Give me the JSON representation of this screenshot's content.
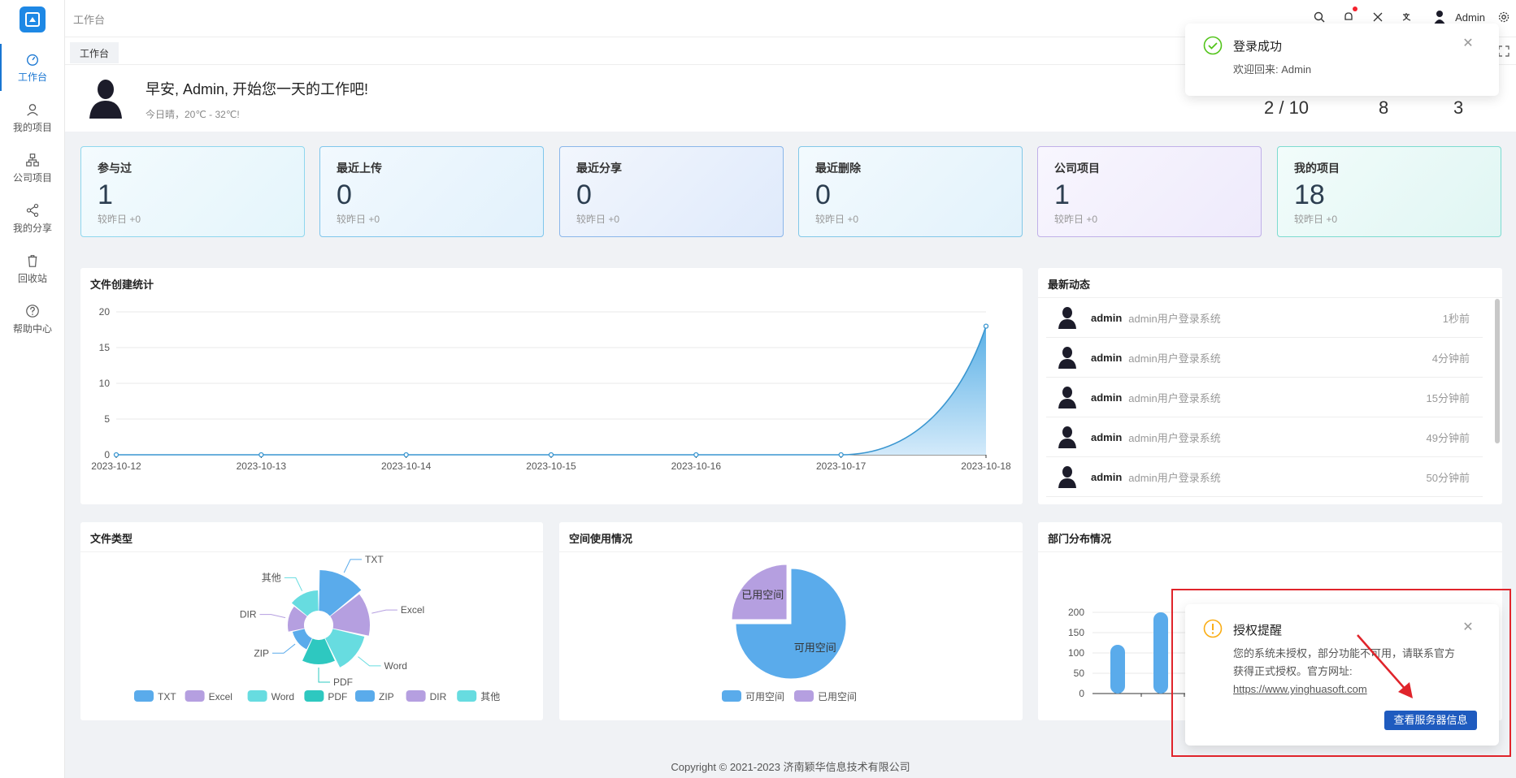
{
  "header": {
    "title": "工作台",
    "user": "Admin"
  },
  "tab": {
    "label": "工作台"
  },
  "sidebar": {
    "items": [
      {
        "label": "工作台",
        "icon": "dashboard-icon"
      },
      {
        "label": "我的项目",
        "icon": "user-icon"
      },
      {
        "label": "公司项目",
        "icon": "org-icon"
      },
      {
        "label": "我的分享",
        "icon": "share-icon"
      },
      {
        "label": "回收站",
        "icon": "trash-icon"
      },
      {
        "label": "帮助中心",
        "icon": "help-icon"
      }
    ]
  },
  "welcome": {
    "greeting": "早安, Admin, 开始您一天的工作吧!",
    "weather": "今日晴，20℃ - 32℃!",
    "stats": [
      "2 / 10",
      "8",
      "3"
    ]
  },
  "cards": [
    {
      "title": "参与过",
      "value": "1",
      "sub": "较昨日 +0"
    },
    {
      "title": "最近上传",
      "value": "0",
      "sub": "较昨日 +0"
    },
    {
      "title": "最近分享",
      "value": "0",
      "sub": "较昨日 +0"
    },
    {
      "title": "最近删除",
      "value": "0",
      "sub": "较昨日 +0"
    },
    {
      "title": "公司项目",
      "value": "1",
      "sub": "较昨日 +0"
    },
    {
      "title": "我的项目",
      "value": "18",
      "sub": "较昨日 +0"
    }
  ],
  "panels": {
    "file_stats": "文件创建统计",
    "activity": "最新动态",
    "file_types": "文件类型",
    "space": "空间使用情况",
    "dept": "部门分布情况"
  },
  "activity": [
    {
      "user": "admin",
      "msg": "admin用户登录系统",
      "time": "1秒前"
    },
    {
      "user": "admin",
      "msg": "admin用户登录系统",
      "time": "4分钟前"
    },
    {
      "user": "admin",
      "msg": "admin用户登录系统",
      "time": "15分钟前"
    },
    {
      "user": "admin",
      "msg": "admin用户登录系统",
      "time": "49分钟前"
    },
    {
      "user": "admin",
      "msg": "admin用户登录系统",
      "time": "50分钟前"
    }
  ],
  "chart_data": [
    {
      "type": "area",
      "x": [
        "2023-10-12",
        "2023-10-13",
        "2023-10-14",
        "2023-10-15",
        "2023-10-16",
        "2023-10-17",
        "2023-10-18"
      ],
      "values": [
        0,
        0,
        0,
        0,
        0,
        0,
        18
      ],
      "ylim": [
        0,
        20
      ],
      "yticks": [
        "0",
        "5",
        "10",
        "15",
        "20"
      ],
      "color": "#3a96d0"
    },
    {
      "type": "pie",
      "categories": [
        "TXT",
        "Excel",
        "Word",
        "PDF",
        "ZIP",
        "DIR",
        "其他"
      ],
      "values": [
        5,
        4.5,
        4,
        3,
        1.5,
        2,
        2.5
      ],
      "colors": [
        "#5aabeb",
        "#b59fe0",
        "#67dce0",
        "#2ec8c0",
        "#5aabeb",
        "#b59fe0",
        "#67dce0"
      ]
    },
    {
      "type": "pie",
      "categories": [
        "可用空间",
        "已用空间"
      ],
      "values": [
        75,
        25
      ],
      "colors": [
        "#5aabeb",
        "#b59fe0"
      ],
      "labels": [
        "可用空间",
        "已用空间"
      ]
    },
    {
      "type": "bar",
      "categories": [
        "",
        ""
      ],
      "values": [
        120,
        200
      ],
      "ylim": [
        0,
        200
      ],
      "yticks": [
        "0",
        "50",
        "100",
        "150",
        "200"
      ],
      "color": "#5aabeb"
    }
  ],
  "notifications": {
    "login": {
      "title": "登录成功",
      "body": "欢迎回来: Admin"
    },
    "license": {
      "title": "授权提醒",
      "body1": "您的系统未授权，部分功能不可用，请联系官方",
      "body2": "获得正式授权。官方网址:",
      "link": "https://www.yinghuasoft.com",
      "button": "查看服务器信息"
    }
  },
  "footer": "Copyright © 2021-2023 济南颖华信息技术有限公司"
}
